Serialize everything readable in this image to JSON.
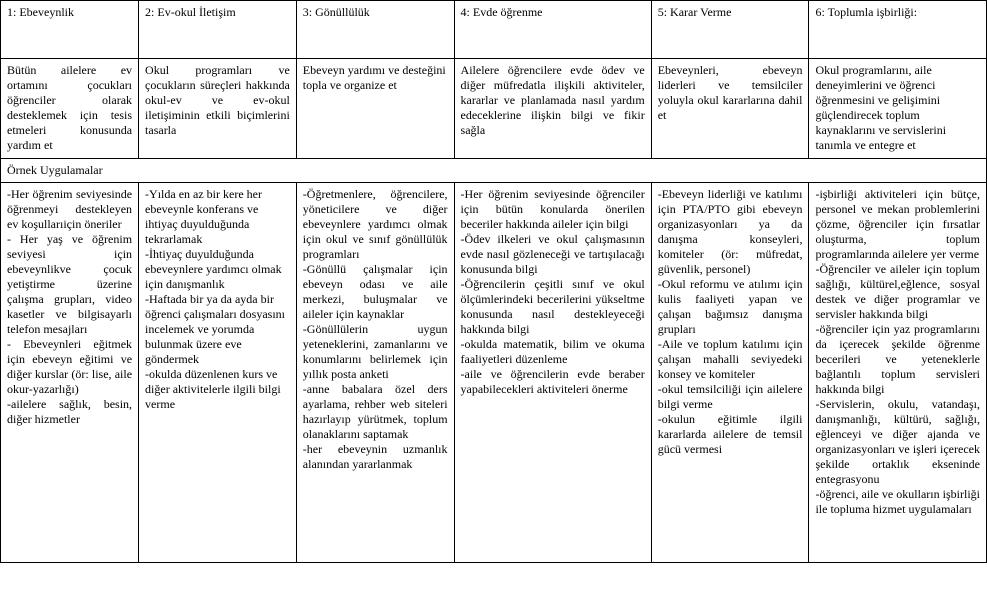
{
  "headers": {
    "h1": "1: Ebeveynlik",
    "h2": "2: Ev-okul İletişim",
    "h3": "3: Gönüllülük",
    "h4": "4: Evde öğrenme",
    "h5": "5: Karar Verme",
    "h6": "6: Toplumla işbirliği:"
  },
  "descriptions": {
    "d1": "Bütün ailelere ev ortamını çocukları öğrenciler olarak desteklemek için tesis etmeleri konusunda yardım et",
    "d2": "Okul programları ve çocukların süreçleri hakkında okul-ev ve ev-okul iletişiminin etkili biçimlerini tasarla",
    "d3": "Ebeveyn yardımı ve desteğini topla ve organize et",
    "d4": "Ailelere öğrencilere evde ödev ve diğer müfredatla ilişkili aktiviteler, kararlar ve planlamada nasıl yardım edeceklerine ilişkin bilgi ve fikir sağla",
    "d5": "Ebeveynleri, ebeveyn liderleri ve temsilciler yoluyla okul kararlarına dahil et",
    "d6": "Okul programlarını, aile deneyimlerini ve öğrenci öğrenmesini ve gelişimini güçlendirecek toplum kaynaklarını ve servislerini tanımla ve entegre et"
  },
  "section_title": "Örnek Uygulamalar",
  "examples": {
    "e1": "-Her öğrenim seviyesinde öğrenmeyi destekleyen ev koşullarıiçin öneriler\n- Her yaş ve öğrenim seviyesi için ebeveynlikve çocuk yetiştirme üzerine çalışma grupları, video kasetler ve bilgisayarlı telefon mesajları\n- Ebeveynleri eğitmek için ebeveyn eğitimi ve diğer kurslar (ör: lise, aile okur-yazarlığı)\n-ailelere sağlık, besin, diğer hizmetler",
    "e2": "-Yılda en az bir kere her ebeveynle konferans ve ihtiyaç duyulduğunda tekrarlamak\n-İhtiyaç duyulduğunda ebeveynlere yardımcı olmak için danışmanlık\n-Haftada bir ya da ayda bir öğrenci çalışmaları dosyasını incelemek ve yorumda bulunmak üzere eve göndermek\n-okulda düzenlenen kurs ve diğer aktivitelerle ilgili bilgi verme",
    "e3": "-Öğretmenlere, öğrencilere, yöneticilere ve diğer ebeveynlere yardımcı olmak için okul ve sınıf gönüllülük programları\n-Gönüllü çalışmalar için ebeveyn odası ve aile merkezi, buluşmalar ve aileler için kaynaklar\n-Gönüllülerin uygun yeteneklerini, zamanlarını ve konumlarını belirlemek için yıllık posta anketi\n-anne babalara özel ders ayarlama, rehber web siteleri hazırlayıp yürütmek, toplum olanaklarını saptamak\n-her ebeveynin uzmanlık alanından yararlanmak",
    "e4": "-Her öğrenim seviyesinde öğrenciler için bütün konularda önerilen beceriler hakkında aileler için bilgi\n-Ödev ilkeleri ve okul çalışmasının evde nasıl gözleneceği ve tartışılacağı konusunda bilgi\n-Öğrencilerin çeşitli sınıf ve okul ölçümlerindeki becerilerini yükseltme konusunda nasıl destekleyeceği hakkında bilgi\n-okulda matematik, bilim ve okuma faaliyetleri düzenleme\n-aile ve öğrencilerin evde beraber yapabilecekleri aktiviteleri önerme",
    "e5": "-Ebeveyn liderliği ve katılımı için PTA/PTO gibi ebeveyn organizasyonları ya da danışma konseyleri, komiteler (ör: müfredat, güvenlik, personel)\n-Okul reformu ve atılımı için kulis faaliyeti yapan ve çalışan bağımsız danışma grupları\n-Aile ve toplum katılımı için çalışan mahalli seviyedeki konsey ve komiteler\n-okul temsilciliği için ailelere bilgi verme\n-okulun eğitimle ilgili kararlarda ailelere de temsil gücü vermesi",
    "e6": "-işbirliği aktiviteleri için bütçe, personel ve mekan problemlerini çözme, öğrenciler için fırsatlar oluşturma, toplum programlarında ailelere yer verme\n-Öğrenciler ve aileler için toplum sağlığı, kültürel,eğlence, sosyal destek ve diğer programlar ve servisler hakkında bilgi\n-öğrenciler için yaz programlarını da içerecek şekilde öğrenme becerileri ve yeteneklerle bağlantılı toplum servisleri hakkında bilgi\n-Servislerin, okulu, vatandaşı, danışmanlığı, kültürü, sağlığı, eğlenceyi ve diğer ajanda ve organizasyonları ve işleri içerecek şekilde ortaklık ekseninde entegrasyonu\n-öğrenci, aile ve okulların işbirliği ile topluma hizmet uygulamaları"
  }
}
